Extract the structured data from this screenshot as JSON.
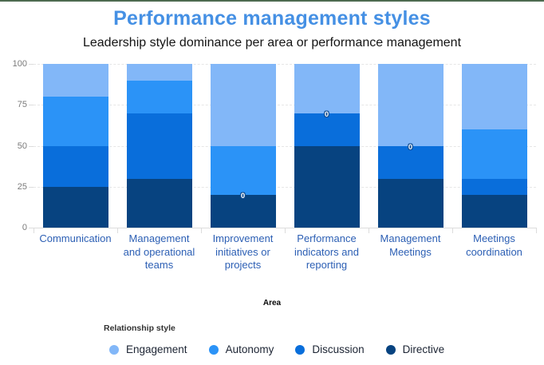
{
  "window": {
    "top_strip_color": "#4d6b50"
  },
  "header": {
    "title": "Performance management styles",
    "subtitle": "Leadership style dominance per area or performance management"
  },
  "chart_data": {
    "type": "bar",
    "stacked": true,
    "title": "Performance management styles",
    "subtitle": "Leadership style dominance per area or performance management",
    "xlabel": "Area",
    "ylabel": "",
    "ylim": [
      0,
      100
    ],
    "yticks": [
      0,
      25,
      50,
      75,
      100
    ],
    "grid": true,
    "legend_title": "Relationship style",
    "legend_position": "bottom-left",
    "categories": [
      "Communication",
      "Management and operational teams",
      "Improvement initiatives or projects",
      "Performance indicators and reporting",
      "Management Meetings",
      "Meetings coordination"
    ],
    "series": [
      {
        "name": "Engagement",
        "color": "#82b7f8",
        "values": [
          20,
          10,
          50,
          30,
          50,
          40
        ]
      },
      {
        "name": "Autonomy",
        "color": "#2b93f7",
        "values": [
          30,
          20,
          30,
          0,
          0,
          30
        ]
      },
      {
        "name": "Discussion",
        "color": "#096edb",
        "values": [
          25,
          40,
          0,
          20,
          20,
          10
        ]
      },
      {
        "name": "Directive",
        "color": "#074380",
        "values": [
          25,
          30,
          20,
          50,
          30,
          20
        ]
      }
    ],
    "zero_value_label": "0"
  },
  "colors": {
    "title": "#4590e4",
    "category_label": "#2c5fb4",
    "ytick_label": "#7b7b7b",
    "axis_line": "#dcdcdc",
    "gridline": "#e6e6e6",
    "legend_text": "#1c2433",
    "data_label_text": "#ffffff",
    "data_label_outline": "#0d4a90"
  }
}
